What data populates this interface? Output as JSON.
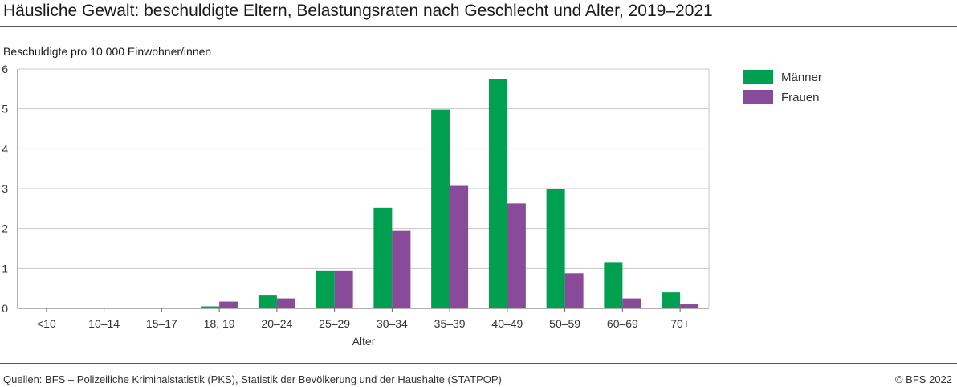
{
  "title": "Häusliche Gewalt: beschuldigte Eltern, Belastungsraten nach Geschlecht und Alter, 2019–2021",
  "source": "Quellen: BFS – Polizeiliche Kriminalstatistik (PKS), Statistik der Bevölkerung und der Haushalte (STATPOP)",
  "copyright": "© BFS 2022",
  "colors": {
    "maenner": "#00A050",
    "frauen": "#8A4A9A",
    "grid": "#c8c8c8",
    "axis": "#666666"
  },
  "chart_data": {
    "type": "bar",
    "title": "Häusliche Gewalt: beschuldigte Eltern, Belastungsraten nach Geschlecht und Alter, 2019–2021",
    "ylabel": "Beschuldigte pro 10 000 Einwohner/innen",
    "xlabel": "Alter",
    "ylim": [
      0,
      6
    ],
    "yticks": [
      0,
      1,
      2,
      3,
      4,
      5,
      6
    ],
    "grid": true,
    "legend_position": "top-right",
    "categories": [
      "<10",
      "10–14",
      "15–17",
      "18, 19",
      "20–24",
      "25–29",
      "30–34",
      "35–39",
      "40–49",
      "50–59",
      "60–69",
      "70+"
    ],
    "series": [
      {
        "name": "Männer",
        "color": "#00A050",
        "values": [
          0,
          0,
          0.02,
          0.05,
          0.32,
          0.95,
          2.52,
          4.98,
          5.75,
          3.0,
          1.16,
          0.4
        ]
      },
      {
        "name": "Frauen",
        "color": "#8A4A9A",
        "values": [
          0,
          0,
          0,
          0.17,
          0.25,
          0.95,
          1.94,
          3.07,
          2.63,
          0.88,
          0.25,
          0.1
        ]
      }
    ]
  }
}
